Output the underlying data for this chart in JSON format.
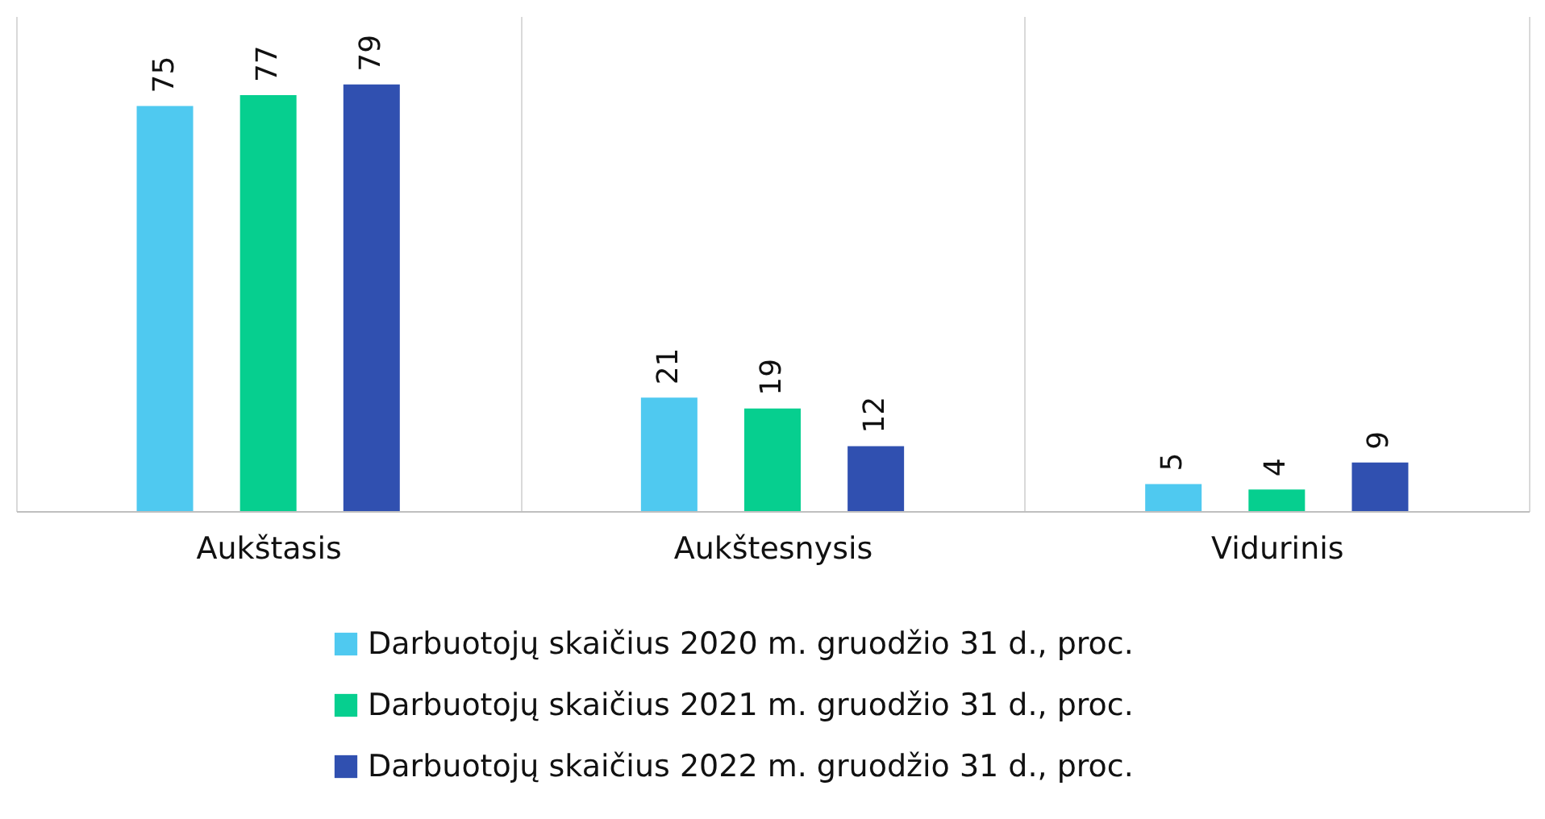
{
  "chart_data": {
    "type": "bar",
    "categories": [
      "Aukštasis",
      "Aukštesnysis",
      "Vidurinis"
    ],
    "series": [
      {
        "name": "Darbuotojų skaičius 2020 m. gruodžio 31 d., proc.",
        "color": "#4fc9f0",
        "values": [
          75,
          21,
          5
        ]
      },
      {
        "name": "Darbuotojų skaičius 2021 m. gruodžio 31 d., proc.",
        "color": "#06cf8f",
        "values": [
          77,
          19,
          4
        ]
      },
      {
        "name": "Darbuotojų skaičius 2022 m. gruodžio 31 d., proc.",
        "color": "#3050b0",
        "values": [
          79,
          12,
          9
        ]
      }
    ],
    "data_labels": true,
    "grid": "x",
    "legend": "bottom"
  }
}
